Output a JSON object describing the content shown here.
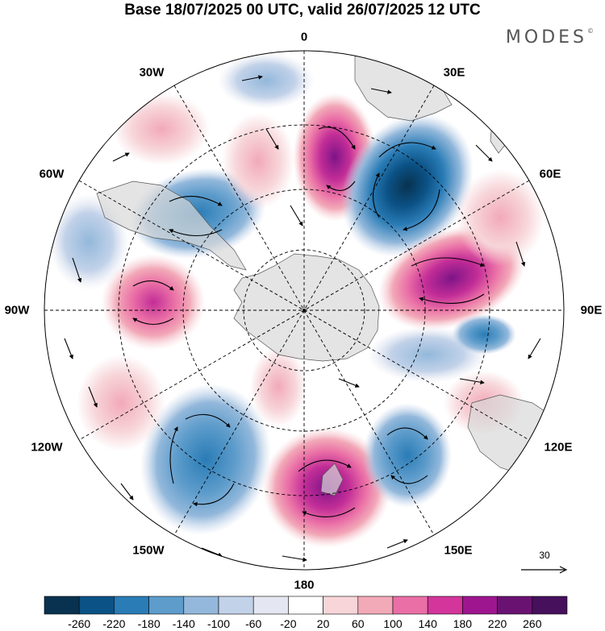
{
  "title": "Base 18/07/2025 00 UTC, valid 26/07/2025 12 UTC",
  "brand": "MODES",
  "brand_mark": "©",
  "longitude_labels": {
    "n0": "0",
    "n30e": "30E",
    "n60e": "60E",
    "n90e": "90E",
    "n120e": "120E",
    "n150e": "150E",
    "n180": "180",
    "n150w": "150W",
    "n120w": "120W",
    "n90w": "90W",
    "n60w": "60W",
    "n30w": "30W"
  },
  "vector_reference": {
    "label": "30"
  },
  "colorbar": {
    "ticks": [
      "-260",
      "-220",
      "-180",
      "-140",
      "-100",
      "-60",
      "-20",
      "20",
      "60",
      "100",
      "140",
      "180",
      "220",
      "260"
    ],
    "colors": [
      "#08324f",
      "#0b5286",
      "#2a7cb6",
      "#5d9ccb",
      "#93b8db",
      "#c2d2e9",
      "#e4e6f1",
      "#ffffff",
      "#f7d5d9",
      "#f2a9b8",
      "#ea6fa6",
      "#d3359b",
      "#9e1590",
      "#6a1272",
      "#46105c"
    ]
  },
  "map_features": {
    "projection": "south polar stereographic",
    "positive_anomalies": [
      "30E sector",
      "60E-90E sector",
      "150E-180 sector",
      "90W sector",
      "120W sector",
      "30W sector"
    ],
    "negative_anomalies": [
      "45E sector",
      "60W-75W sector",
      "135W-150W sector",
      "135E sector",
      "100E sector"
    ]
  }
}
